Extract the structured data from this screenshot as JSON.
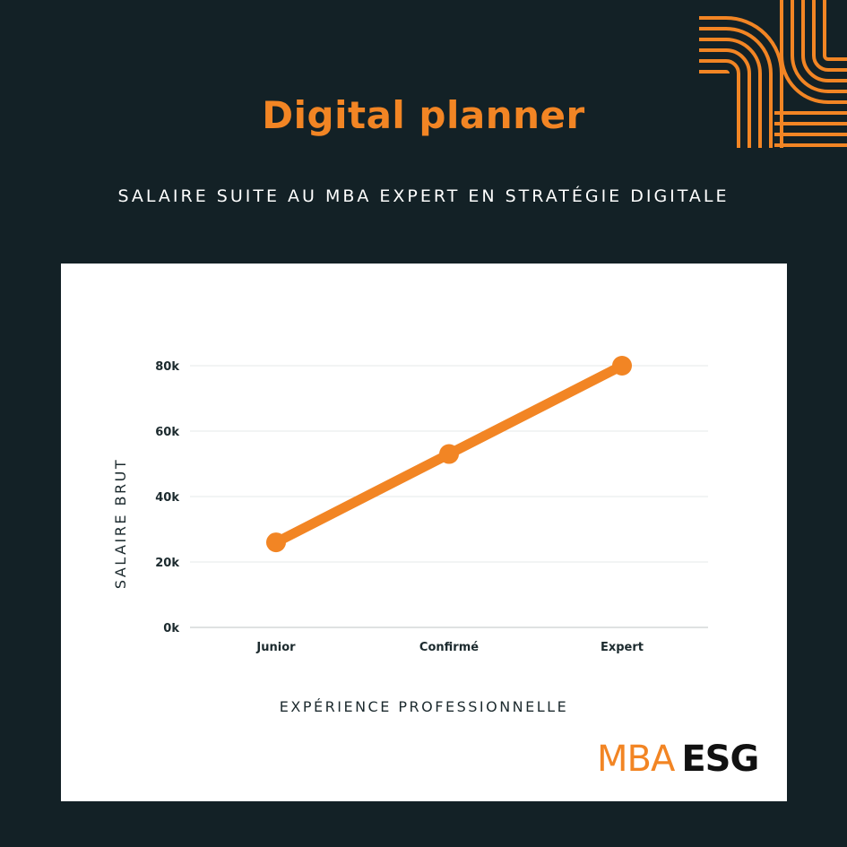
{
  "header": {
    "title": "Digital planner",
    "subtitle": "SALAIRE SUITE AU MBA EXPERT EN STRATÉGIE DIGITALE"
  },
  "logo": {
    "part1": "MBA",
    "part2": "ESG"
  },
  "colors": {
    "background": "#132126",
    "accent": "#f28524",
    "panel": "#ffffff",
    "text_dark": "#1c2a2e"
  },
  "chart_data": {
    "type": "line",
    "categories": [
      "Junior",
      "Confirmé",
      "Expert"
    ],
    "series": [
      {
        "values": [
          26000,
          53000,
          80000
        ]
      }
    ],
    "ylim": [
      0,
      80000
    ],
    "yticks": [
      0,
      20000,
      40000,
      60000,
      80000
    ],
    "ytick_labels": [
      "0k",
      "20k",
      "40k",
      "60k",
      "80k"
    ],
    "xlabel": "EXPÉRIENCE PROFESSIONNELLE",
    "ylabel": "SALAIRE BRUT",
    "grid": true,
    "legend": "none"
  }
}
